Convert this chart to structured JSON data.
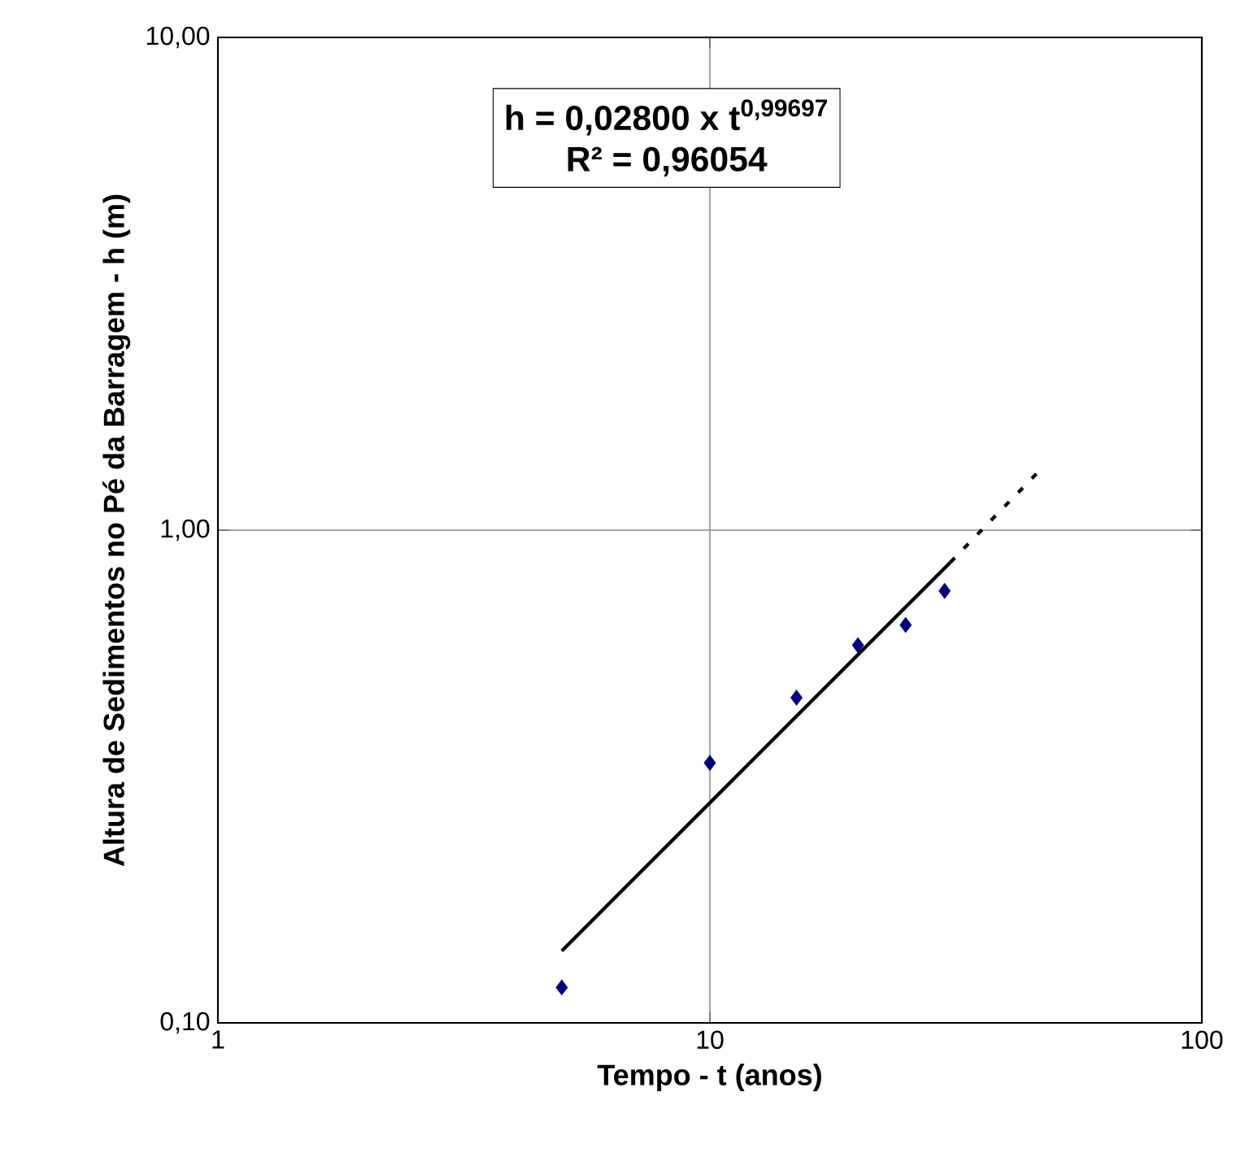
{
  "chart_data": {
    "type": "scatter",
    "xlabel": "Tempo - t (anos)",
    "ylabel": "Altura de Sedimentos no Pé da Barragem - h (m)",
    "log": "xy",
    "grid": true,
    "marker": "diamond",
    "xlim": [
      1,
      100
    ],
    "ylim": [
      0.1,
      10
    ],
    "xticks": [
      {
        "value": 1,
        "label": "1"
      },
      {
        "value": 10,
        "label": "10"
      },
      {
        "value": 100,
        "label": "100"
      }
    ],
    "yticks": [
      {
        "value": 0.1,
        "label": "0,10"
      },
      {
        "value": 1,
        "label": "1,00"
      },
      {
        "value": 10,
        "label": "10,00"
      }
    ],
    "annotations": [
      "h = 0,02800 x t$^{0,99697}$",
      "R² = 0,96054"
    ],
    "x": [
      5,
      10,
      15,
      20,
      25,
      30
    ],
    "series": [
      {
        "color": "#000080",
        "values": [
          0.118,
          0.337,
          0.457,
          0.584,
          0.642,
          0.753
        ]
      },
      {
        "type": "line",
        "color": "#000000",
        "line_style": "solid",
        "marker": "none",
        "x": [
          5,
          30.8
        ],
        "values": [
          0.14,
          0.86
        ]
      },
      {
        "type": "line",
        "color": "#000000",
        "line_style": "dashed",
        "marker": "none",
        "x": [
          30.8,
          46.4
        ],
        "values": [
          0.86,
          1.31
        ]
      }
    ]
  }
}
